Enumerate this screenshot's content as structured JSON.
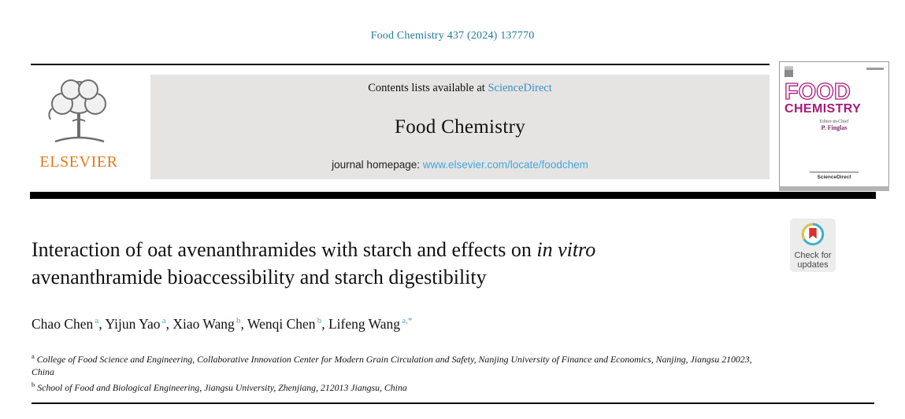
{
  "page": {
    "journal_ref": "Food Chemistry 437 (2024) 137770"
  },
  "masthead": {
    "contents_prefix": "Contents lists available at ",
    "sciencedirect_link": "ScienceDirect",
    "journal_name": "Food Chemistry",
    "homepage_prefix": "journal homepage: ",
    "homepage_url": "www.elsevier.com/locate/foodchem",
    "publisher": "ELSEVIER"
  },
  "cover": {
    "title_line1": "FOOD",
    "title_line2": "CHEMISTRY",
    "editor_label": "Editor-in-Chief",
    "editor_name": "P. Finglas",
    "footer_brand": "ScienceDirect"
  },
  "article": {
    "title_line1_regular": "Interaction of oat avenanthramides with starch and effects on ",
    "title_line1_italic": "in vitro",
    "title_line2": "avenanthramide bioaccessibility and starch digestibility",
    "authors": [
      {
        "name": "Chao Chen",
        "sup": "a"
      },
      {
        "name": "Yijun Yao",
        "sup": "a"
      },
      {
        "name": "Xiao Wang",
        "sup": "b"
      },
      {
        "name": "Wenqi Chen",
        "sup": "b"
      },
      {
        "name": "Lifeng Wang",
        "sup": "a,*"
      }
    ],
    "affiliations": [
      {
        "sup": "a",
        "text": "College of Food Science and Engineering, Collaborative Innovation Center for Modern Grain Circulation and Safety, Nanjing University of Finance and Economics, Nanjing, Jiangsu 210023, China"
      },
      {
        "sup": "b",
        "text": "School of Food and Biological Engineering, Jiangsu University, Zhenjiang, 212013 Jiangsu, China"
      }
    ]
  },
  "badge": {
    "line1": "Check for",
    "line2": "updates"
  },
  "colors": {
    "journal_ref_teal": "#1f7b9d",
    "sciencedirect_blue": "#3b8ec6",
    "homepage_url_blue": "#44a5e0",
    "superscript_blue": "#4da3dc",
    "elsevier_orange": "#e67817",
    "cover_magenta": "#a81a7a",
    "badge_red": "#d6342b",
    "badge_teal": "#3fb0c9",
    "badge_yellow": "#dfc24a"
  }
}
